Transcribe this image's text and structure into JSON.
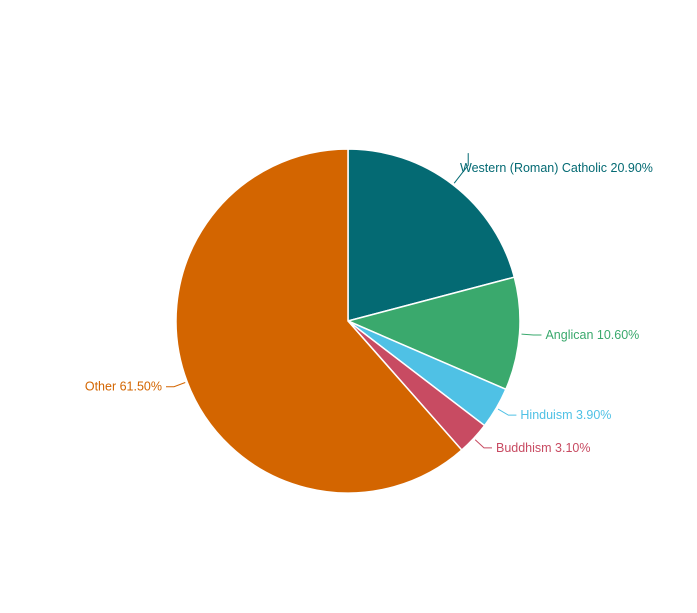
{
  "chart_data": {
    "type": "pie",
    "title": "",
    "slices": [
      {
        "label": "Western (Roman) Catholic",
        "value": 20.9,
        "display": "Western (Roman) Catholic 20.90%",
        "color": "#046a73"
      },
      {
        "label": "Anglican",
        "value": 10.6,
        "display": "Anglican 10.60%",
        "color": "#3aa96d"
      },
      {
        "label": "Hinduism",
        "value": 3.9,
        "display": "Hinduism 3.90%",
        "color": "#4fc1e5"
      },
      {
        "label": "Buddhism",
        "value": 3.1,
        "display": "Buddhism 3.10%",
        "color": "#c84b62"
      },
      {
        "label": "Other",
        "value": 61.5,
        "display": "Other 61.50%",
        "color": "#d36500"
      }
    ],
    "start_angle": "top",
    "direction": "clockwise",
    "legend": "none"
  }
}
